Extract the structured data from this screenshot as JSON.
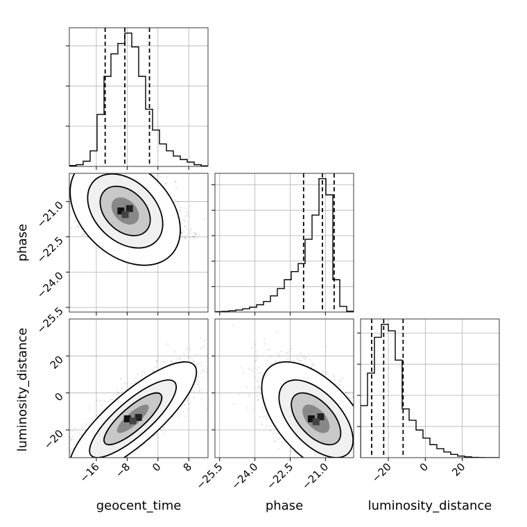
{
  "chart_data": {
    "type": "corner",
    "grid": true,
    "parameters": [
      "geocent_time",
      "phase",
      "luminosity_distance"
    ],
    "axis_labels": {
      "geocent_time": "geocent_time",
      "phase": "phase",
      "luminosity_distance": "luminosity_distance"
    },
    "ticks": {
      "geocent_time": {
        "values": [
          -16,
          -8,
          0,
          8
        ],
        "labels": [
          "−16",
          "−8",
          "0",
          "8"
        ]
      },
      "phase_y": {
        "values": [
          -21.0,
          -22.5,
          -24.0,
          -25.5
        ],
        "labels": [
          "−21.0",
          "−22.5",
          "−24.0",
          "−25.5"
        ]
      },
      "phase_x": {
        "values": [
          -25.5,
          -24.0,
          -22.5,
          -21.0
        ],
        "labels": [
          "−25.5",
          "−24.0",
          "−22.5",
          "−21.0"
        ]
      },
      "luminosity_distance_y": {
        "values": [
          20,
          0,
          -20
        ],
        "labels": [
          "20",
          "0",
          "−20"
        ]
      },
      "luminosity_distance_x": {
        "values": [
          -20,
          0,
          20
        ],
        "labels": [
          "−20",
          "0",
          "20"
        ]
      }
    },
    "ranges": {
      "geocent_time": [
        -23,
        13
      ],
      "phase": [
        -25.7,
        -19.8
      ],
      "luminosity_distance": [
        -35,
        40
      ]
    },
    "histograms": {
      "geocent_time": {
        "edges": [
          -23,
          -21.2,
          -19.4,
          -17.6,
          -15.8,
          -14,
          -12.2,
          -10.4,
          -8.6,
          -6.8,
          -5,
          -3.2,
          -1.4,
          0.4,
          2.2,
          4,
          5.8,
          7.6,
          9.4,
          11.2,
          13
        ],
        "counts": [
          0.5,
          1,
          3,
          9,
          30,
          52,
          65,
          71,
          77,
          69,
          52,
          33,
          21,
          13,
          9,
          6,
          4,
          2.5,
          1,
          0.3
        ],
        "quantiles": [
          -13.7,
          -8.6,
          -2.2
        ]
      },
      "phase": {
        "edges": [
          -25.7,
          -25.405,
          -25.11,
          -24.815,
          -24.52,
          -24.225,
          -23.93,
          -23.635,
          -23.34,
          -23.045,
          -22.75,
          -22.455,
          -22.16,
          -21.865,
          -21.57,
          -21.275,
          -20.98,
          -20.685,
          -20.39,
          -20.095,
          -19.8
        ],
        "counts": [
          0.5,
          0.8,
          1.5,
          2.5,
          4,
          6,
          9,
          13,
          20,
          29,
          40,
          50,
          60,
          90,
          120,
          165,
          145,
          40,
          7,
          1
        ],
        "quantiles": [
          -21.93,
          -21.13,
          -20.63
        ]
      },
      "luminosity_distance": {
        "edges": [
          -35,
          -31.25,
          -27.5,
          -23.75,
          -20,
          -16.25,
          -12.5,
          -8.75,
          -5,
          -1.25,
          2.5,
          6.25,
          10,
          13.75,
          17.5,
          21.25,
          25,
          28.75,
          32.5,
          36.25,
          40
        ],
        "counts": [
          32,
          52,
          74,
          82,
          78,
          60,
          30,
          23,
          17,
          12,
          8,
          5.5,
          3.5,
          2,
          1,
          0.5,
          0.2,
          0.1,
          0,
          0
        ],
        "quantiles": [
          -29.0,
          -22.5,
          -12.0
        ]
      }
    },
    "joint": {
      "phase_vs_geocent_time": {
        "mean": [
          -8.5,
          -21.4
        ],
        "sd": [
          6.5,
          1.05
        ],
        "rho": -0.35,
        "skew_y": -0.9
      },
      "luminosity_distance_vs_geocent_time": {
        "mean": [
          -6.5,
          -14.0
        ],
        "sd": [
          7.5,
          14.0
        ],
        "rho": 0.82,
        "skew_y": 0.6
      },
      "luminosity_distance_vs_phase": {
        "mean": [
          -21.4,
          -14.0
        ],
        "sd": [
          1.05,
          14.0
        ],
        "rho": -0.55,
        "skew_x": -0.9
      }
    }
  }
}
